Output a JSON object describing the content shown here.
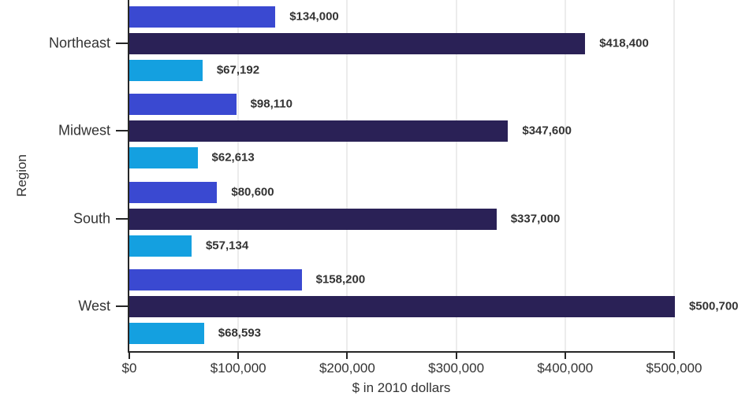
{
  "chart_data": {
    "type": "bar",
    "orientation": "horizontal",
    "ylabel": "Region",
    "xlabel": "$ in 2010 dollars",
    "categories": [
      "Northeast",
      "Midwest",
      "South",
      "West"
    ],
    "series": [
      {
        "name": "blue-series",
        "color": "#3a49d1",
        "values": [
          134000,
          98110,
          80600,
          158200
        ],
        "labels": [
          "$134,000",
          "$98,110",
          "$80,600",
          "$158,200"
        ]
      },
      {
        "name": "navy-series",
        "color": "#2a2156",
        "values": [
          418400,
          347600,
          337000,
          500700
        ],
        "labels": [
          "$418,400",
          "$347,600",
          "$337,000",
          "$500,700"
        ]
      },
      {
        "name": "cyan-series",
        "color": "#14a0e0",
        "values": [
          67192,
          62613,
          57134,
          68593
        ],
        "labels": [
          "$67,192",
          "$62,613",
          "$57,134",
          "$68,593"
        ]
      }
    ],
    "xlim": [
      0,
      500000
    ],
    "xticks": [
      0,
      100000,
      200000,
      300000,
      400000,
      500000
    ],
    "xtick_labels": [
      "$0",
      "$100,000",
      "$200,000",
      "$300,000",
      "$400,000",
      "$500,000"
    ],
    "grid": true,
    "legend": false
  },
  "style": {
    "axis_color": "#262626",
    "grid_color": "#ececec",
    "text_color": "#333333",
    "background": "#ffffff"
  }
}
